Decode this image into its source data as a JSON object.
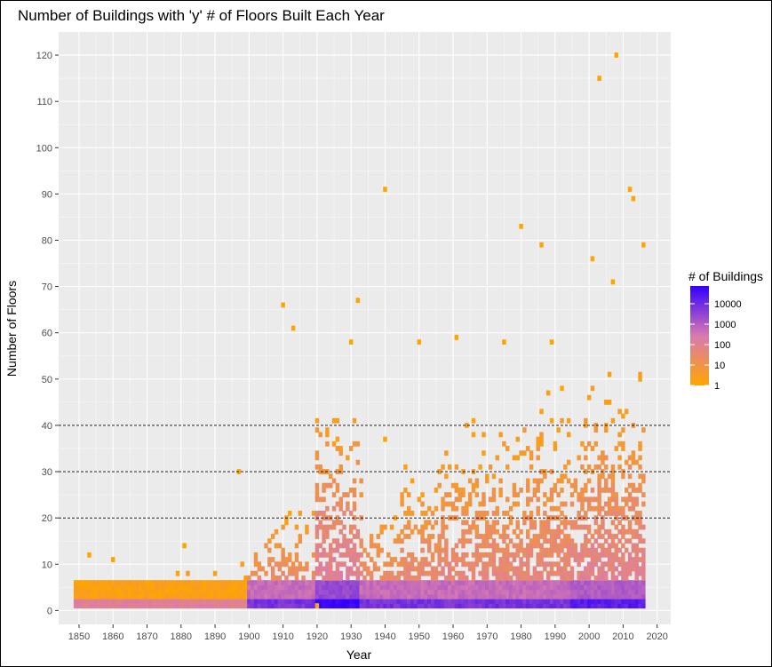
{
  "chart_data": {
    "type": "heatmap",
    "title": "Number of Buildings with 'y' # of Floors Built Each Year",
    "xlabel": "Year",
    "ylabel": "Number of Floors",
    "xlim": [
      1844,
      2024
    ],
    "ylim": [
      -3,
      125
    ],
    "x_ticks": [
      1850,
      1860,
      1870,
      1880,
      1890,
      1900,
      1910,
      1920,
      1930,
      1940,
      1950,
      1960,
      1970,
      1980,
      1990,
      2000,
      2010,
      2020
    ],
    "y_ticks": [
      0,
      10,
      20,
      30,
      40,
      50,
      60,
      70,
      80,
      90,
      100,
      110,
      120
    ],
    "reference_lines": [
      20,
      30,
      40
    ],
    "grid": true,
    "legend": {
      "title": "# of Buildings",
      "position": "right",
      "scale": "log10",
      "labels": [
        "10000",
        "1000",
        "100",
        "10",
        "1"
      ],
      "values": [
        10000,
        1000,
        100,
        10,
        1
      ],
      "color_low": "#FFA500",
      "color_mid": "#D97AB0",
      "color_high": "#3300FF"
    },
    "outliers": [
      {
        "x": 2008,
        "y": 120
      },
      {
        "x": 2003,
        "y": 115
      },
      {
        "x": 1940,
        "y": 91
      },
      {
        "x": 2012,
        "y": 91
      },
      {
        "x": 2013,
        "y": 89
      },
      {
        "x": 1980,
        "y": 83
      },
      {
        "x": 1986,
        "y": 79
      },
      {
        "x": 2016,
        "y": 79
      },
      {
        "x": 2001,
        "y": 76
      },
      {
        "x": 2007,
        "y": 71
      },
      {
        "x": 1932,
        "y": 67
      },
      {
        "x": 1910,
        "y": 66
      },
      {
        "x": 1913,
        "y": 61
      },
      {
        "x": 1961,
        "y": 59
      },
      {
        "x": 1950,
        "y": 58
      },
      {
        "x": 1975,
        "y": 58
      },
      {
        "x": 1989,
        "y": 58
      },
      {
        "x": 1930,
        "y": 58
      },
      {
        "x": 1897,
        "y": 30
      },
      {
        "x": 1881,
        "y": 14
      },
      {
        "x": 1853,
        "y": 12
      },
      {
        "x": 1860,
        "y": 11
      },
      {
        "x": 1920,
        "y": 1
      },
      {
        "x": 1940,
        "y": 37
      }
    ]
  }
}
